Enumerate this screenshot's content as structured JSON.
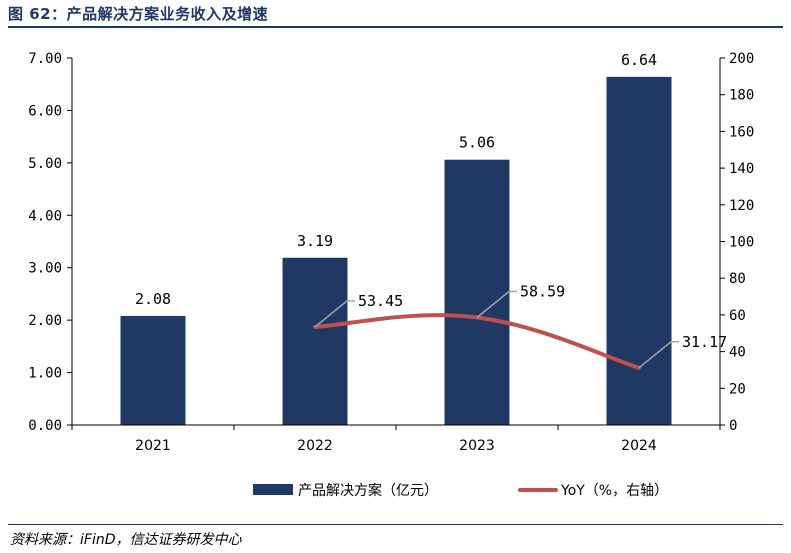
{
  "title": "图 62：产品解决方案业务收入及增速",
  "source": "资料来源：iFinD，信达证券研发中心",
  "chart_data": {
    "type": "bar+line",
    "categories": [
      "2021",
      "2022",
      "2023",
      "2024"
    ],
    "series": [
      {
        "name": "产品解决方案（亿元）",
        "type": "bar",
        "axis": "left",
        "values": [
          2.08,
          3.19,
          5.06,
          6.64
        ],
        "labels": [
          "2.08",
          "3.19",
          "5.06",
          "6.64"
        ],
        "color": "#1f3864"
      },
      {
        "name": "YoY（%，右轴）",
        "type": "line",
        "axis": "right",
        "values": [
          null,
          53.45,
          58.59,
          31.17
        ],
        "labels": [
          "",
          "53.45",
          "58.59",
          "31.17"
        ],
        "color": "#c0504d"
      }
    ],
    "y_left": {
      "min": 0,
      "max": 7,
      "ticks": [
        "0.00",
        "1.00",
        "2.00",
        "3.00",
        "4.00",
        "5.00",
        "6.00",
        "7.00"
      ]
    },
    "y_right": {
      "min": 0,
      "max": 200,
      "ticks": [
        "0",
        "20",
        "40",
        "60",
        "80",
        "100",
        "120",
        "140",
        "160",
        "180",
        "200"
      ]
    },
    "grid": false,
    "legend_position": "bottom"
  }
}
